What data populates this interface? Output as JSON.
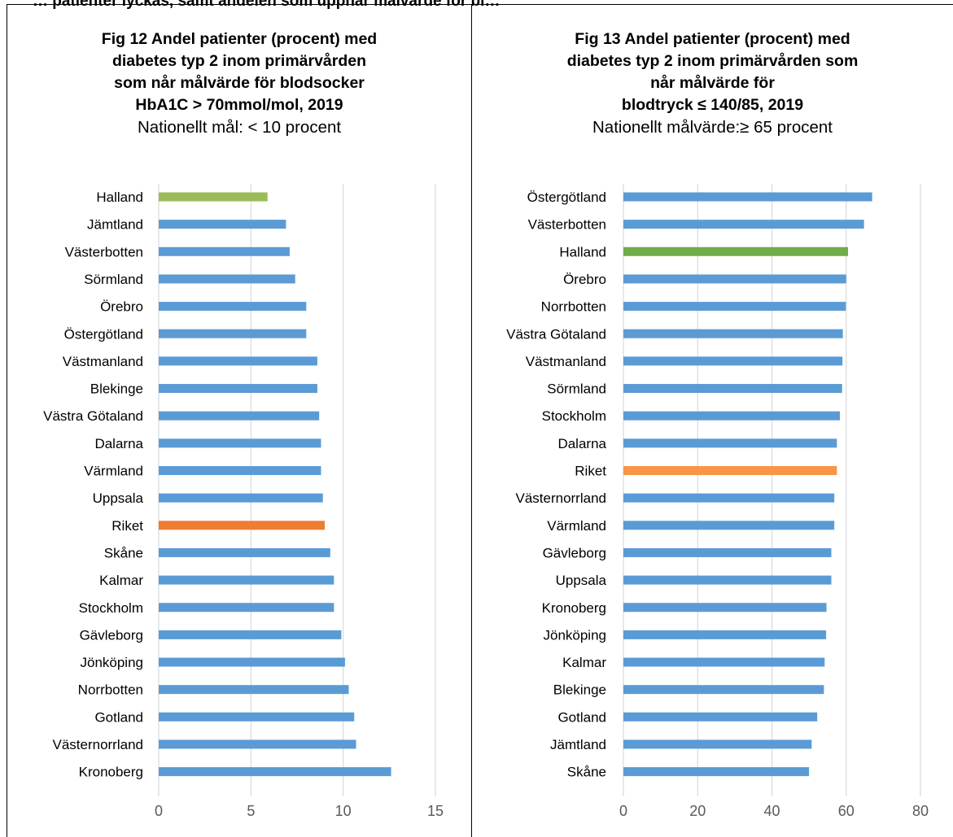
{
  "header_fragment": "… patienter lyckas, samt andelen som uppnår målvärde för bl…",
  "charts": {
    "left": {
      "title_lines": [
        "Fig 12 Andel patienter (procent) med",
        "diabetes typ 2 inom primärvården",
        "som når målvärde för blodsocker",
        "HbA1C > 70mmol/mol, 2019"
      ],
      "subtitle": "Nationellt mål: < 10 procent"
    },
    "right": {
      "title_lines": [
        "Fig 13 Andel patienter (procent) med",
        "diabetes typ 2 inom primärvården som",
        "når målvärde för",
        "blodtryck ≤ 140/85, 2019"
      ],
      "subtitle": "Nationellt målvärde:≥ 65 procent"
    }
  },
  "chart_data": [
    {
      "type": "bar",
      "orientation": "horizontal",
      "categories": [
        "Halland",
        "Jämtland",
        "Västerbotten",
        "Sörmland",
        "Örebro",
        "Östergötland",
        "Västmanland",
        "Blekinge",
        "Västra Götaland",
        "Dalarna",
        "Värmland",
        "Uppsala",
        "Riket",
        "Skåne",
        "Kalmar",
        "Stockholm",
        "Gävleborg",
        "Jönköping",
        "Norrbotten",
        "Gotland",
        "Västernorrland",
        "Kronoberg"
      ],
      "values": [
        5.9,
        6.9,
        7.1,
        7.4,
        8.0,
        8.0,
        8.6,
        8.6,
        8.7,
        8.8,
        8.8,
        8.9,
        9.0,
        9.3,
        9.5,
        9.5,
        9.9,
        10.1,
        10.3,
        10.6,
        10.7,
        12.6
      ],
      "colors": [
        "#9BBB59",
        "#5B9BD5",
        "#5B9BD5",
        "#5B9BD5",
        "#5B9BD5",
        "#5B9BD5",
        "#5B9BD5",
        "#5B9BD5",
        "#5B9BD5",
        "#5B9BD5",
        "#5B9BD5",
        "#5B9BD5",
        "#ED7D31",
        "#5B9BD5",
        "#5B9BD5",
        "#5B9BD5",
        "#5B9BD5",
        "#5B9BD5",
        "#5B9BD5",
        "#5B9BD5",
        "#5B9BD5",
        "#5B9BD5"
      ],
      "xlim": [
        0,
        15
      ],
      "xticks": [
        0,
        5,
        10,
        15
      ],
      "grid": true,
      "gridline_color": "#D9D9D9"
    },
    {
      "type": "bar",
      "orientation": "horizontal",
      "categories": [
        "Östergötland",
        "Västerbotten",
        "Halland",
        "Örebro",
        "Norrbotten",
        "Västra Götaland",
        "Västmanland",
        "Sörmland",
        "Stockholm",
        "Dalarna",
        "Riket",
        "Västernorrland",
        "Värmland",
        "Gävleborg",
        "Uppsala",
        "Kronoberg",
        "Jönköping",
        "Kalmar",
        "Blekinge",
        "Gotland",
        "Jämtland",
        "Skåne"
      ],
      "values": [
        67.0,
        64.8,
        60.5,
        60.0,
        59.9,
        59.1,
        59.0,
        58.9,
        58.3,
        57.5,
        57.5,
        56.8,
        56.8,
        56.0,
        56.0,
        54.7,
        54.6,
        54.2,
        54.0,
        52.2,
        50.7,
        50.0
      ],
      "colors": [
        "#5B9BD5",
        "#5B9BD5",
        "#70AD47",
        "#5B9BD5",
        "#5B9BD5",
        "#5B9BD5",
        "#5B9BD5",
        "#5B9BD5",
        "#5B9BD5",
        "#5B9BD5",
        "#F79646",
        "#5B9BD5",
        "#5B9BD5",
        "#5B9BD5",
        "#5B9BD5",
        "#5B9BD5",
        "#5B9BD5",
        "#5B9BD5",
        "#5B9BD5",
        "#5B9BD5",
        "#5B9BD5",
        "#5B9BD5"
      ],
      "xlim": [
        0,
        80
      ],
      "xticks": [
        0,
        20,
        40,
        60,
        80
      ],
      "grid": true,
      "gridline_color": "#D9D9D9"
    }
  ]
}
